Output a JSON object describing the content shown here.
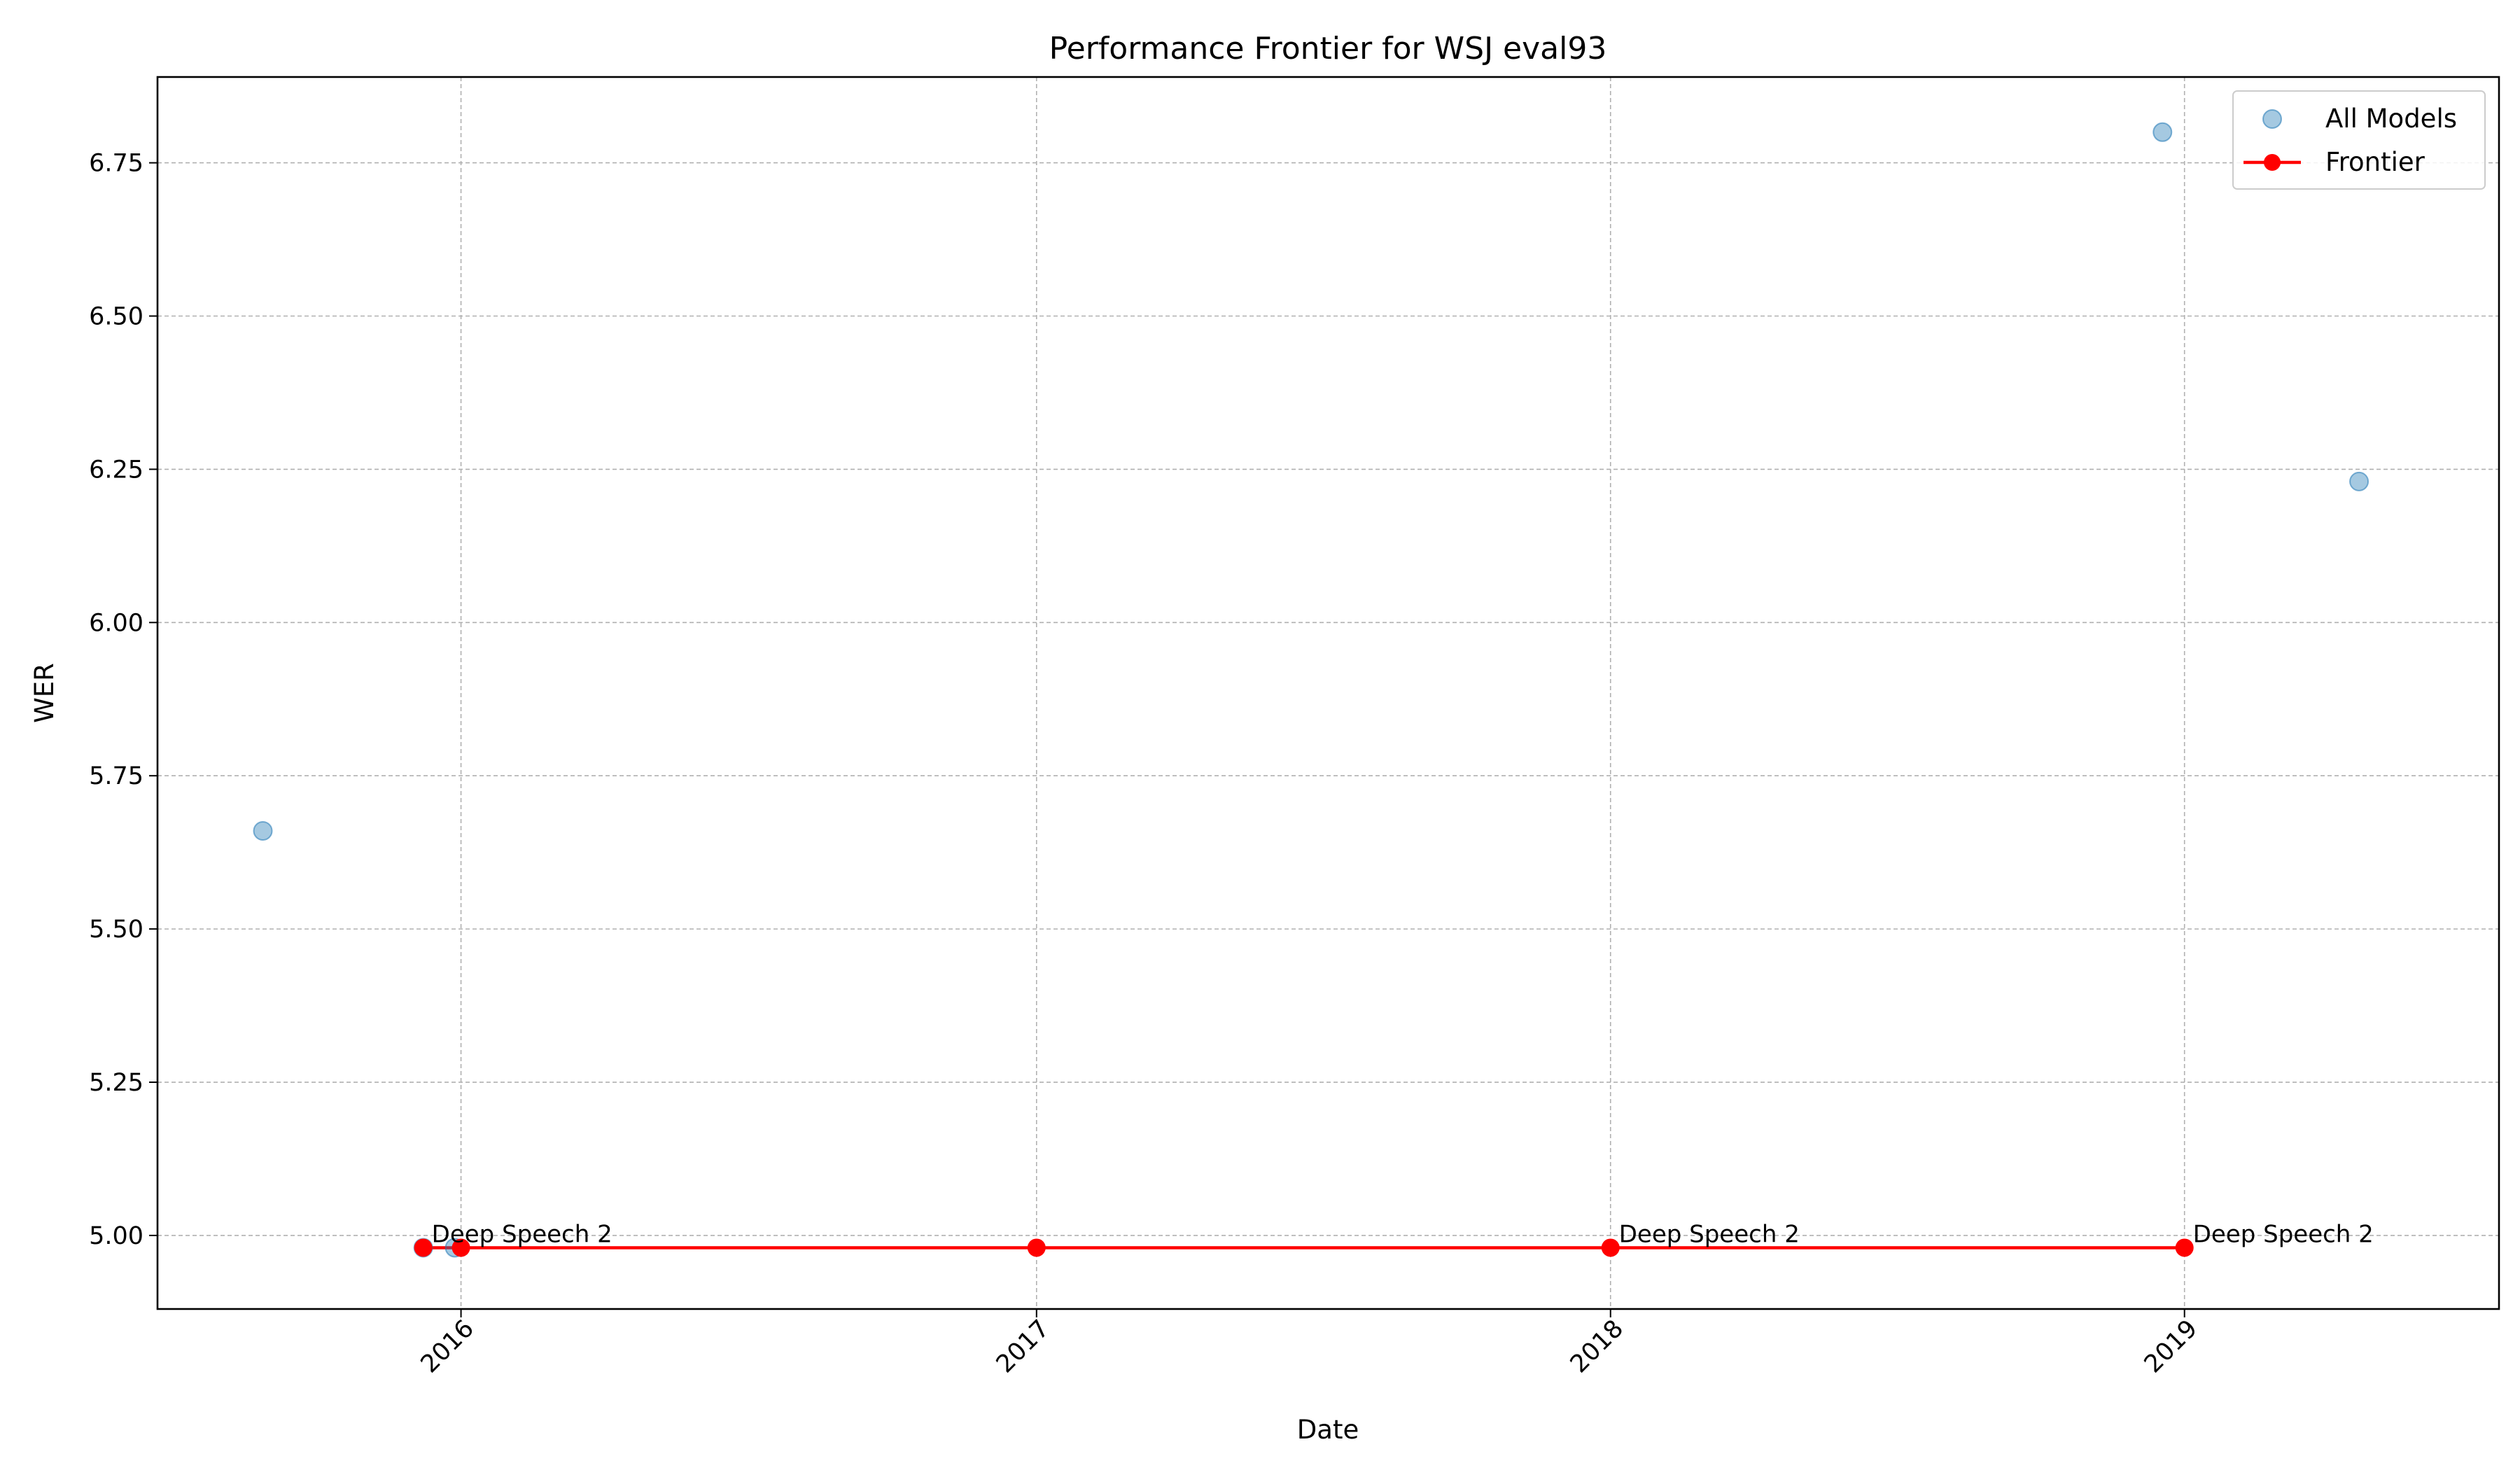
{
  "chart_data": {
    "type": "scatter",
    "title": "Performance Frontier for WSJ eval93",
    "xlabel": "Date",
    "ylabel": "WER",
    "xlim": [
      "2015-06-22",
      "2019-07-20"
    ],
    "ylim": [
      4.88,
      6.89
    ],
    "x_ticks": [
      "2016",
      "2017",
      "2018",
      "2019"
    ],
    "y_ticks": [
      "5.00",
      "5.25",
      "5.50",
      "5.75",
      "6.00",
      "6.25",
      "6.50",
      "6.75"
    ],
    "grid": true,
    "legend_position": "top-right",
    "colors": {
      "all_models": "#1f77b4",
      "frontier": "#ff0000"
    },
    "series": [
      {
        "name": "All Models",
        "kind": "scatter",
        "points": [
          {
            "x": "2015-08-28",
            "y": 5.66
          },
          {
            "x": "2015-12-08",
            "y": 4.98
          },
          {
            "x": "2015-12-28",
            "y": 4.98
          },
          {
            "x": "2018-12-18",
            "y": 6.8
          },
          {
            "x": "2019-04-22",
            "y": 6.23
          }
        ]
      },
      {
        "name": "Frontier",
        "kind": "line",
        "points": [
          {
            "x": "2015-12-08",
            "y": 4.98
          },
          {
            "x": "2016-01-01",
            "y": 4.98
          },
          {
            "x": "2017-01-01",
            "y": 4.98
          },
          {
            "x": "2018-01-01",
            "y": 4.98
          },
          {
            "x": "2019-01-01",
            "y": 4.98
          }
        ]
      }
    ],
    "annotations": [
      {
        "text": "Deep Speech 2",
        "x": "2015-12-08",
        "y": 4.98
      },
      {
        "text": "Deep Speech 2",
        "x": "2018-01-01",
        "y": 4.98
      },
      {
        "text": "Deep Speech 2",
        "x": "2019-01-01",
        "y": 4.98
      }
    ]
  }
}
